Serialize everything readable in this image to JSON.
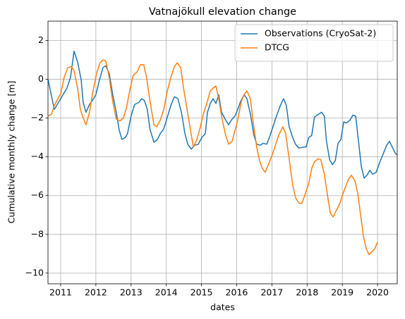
{
  "chart_data": {
    "type": "line",
    "title": "Vatnajökull elevation change",
    "xlabel": "dates",
    "ylabel": "Cumulative monthly change [m]",
    "xlim": [
      2010.64,
      2020.56
    ],
    "ylim": [
      -10.55,
      3.0
    ],
    "xticks": [
      2011,
      2012,
      2013,
      2014,
      2015,
      2016,
      2017,
      2018,
      2019,
      2020
    ],
    "yticks": [
      {
        "value": -10,
        "label": "−10"
      },
      {
        "value": -8,
        "label": "−8"
      },
      {
        "value": -6,
        "label": "−6"
      },
      {
        "value": -4,
        "label": "−4"
      },
      {
        "value": -2,
        "label": "−2"
      },
      0,
      2
    ],
    "grid": true,
    "legend": "upper right",
    "series": [
      {
        "name": "Observations (CryoSat-2)",
        "color": "#1f77b4",
        "x": [
          2010.64,
          2010.82,
          2011.0,
          2011.18,
          2011.28,
          2011.38,
          2011.48,
          2011.58,
          2011.64,
          2011.72,
          2011.82,
          2011.9,
          2012.0,
          2012.1,
          2012.2,
          2012.28,
          2012.38,
          2012.48,
          2012.58,
          2012.66,
          2012.74,
          2012.84,
          2012.9,
          2013.0,
          2013.1,
          2013.22,
          2013.3,
          2013.38,
          2013.46,
          2013.54,
          2013.65,
          2013.75,
          2013.83,
          2013.93,
          2014.03,
          2014.13,
          2014.23,
          2014.33,
          2014.43,
          2014.53,
          2014.61,
          2014.71,
          2014.81,
          2014.91,
          2015.01,
          2015.11,
          2015.17,
          2015.25,
          2015.33,
          2015.41,
          2015.49,
          2015.57,
          2015.67,
          2015.77,
          2015.85,
          2015.95,
          2016.03,
          2016.11,
          2016.21,
          2016.29,
          2016.39,
          2016.49,
          2016.57,
          2016.67,
          2016.75,
          2016.85,
          2016.93,
          2017.03,
          2017.13,
          2017.23,
          2017.33,
          2017.41,
          2017.49,
          2017.59,
          2017.67,
          2017.77,
          2017.89,
          2017.97,
          2018.05,
          2018.13,
          2018.21,
          2018.33,
          2018.41,
          2018.49,
          2018.55,
          2018.64,
          2018.72,
          2018.8,
          2018.88,
          2018.96,
          2019.04,
          2019.12,
          2019.22,
          2019.3,
          2019.38,
          2019.46,
          2019.54,
          2019.62,
          2019.7,
          2019.78,
          2019.86,
          2019.96,
          2020.06,
          2020.16,
          2020.26,
          2020.34,
          2020.42,
          2020.5,
          2020.56
        ],
        "values": [
          0,
          -1.55,
          -1.0,
          -0.45,
          0.1,
          1.45,
          0.9,
          0,
          -1.2,
          -1.7,
          -1.3,
          -1.1,
          -0.8,
          -0.05,
          0.6,
          0.7,
          0.3,
          -0.8,
          -1.7,
          -2.6,
          -3.1,
          -3.0,
          -2.8,
          -1.9,
          -1.3,
          -1.2,
          -1.0,
          -1.1,
          -1.55,
          -2.6,
          -3.25,
          -3.1,
          -2.8,
          -2.55,
          -1.95,
          -1.35,
          -0.9,
          -1.0,
          -1.7,
          -2.8,
          -3.35,
          -3.6,
          -3.4,
          -3.35,
          -3.0,
          -2.8,
          -1.7,
          -1.25,
          -1.0,
          -1.25,
          -0.8,
          -1.7,
          -2.05,
          -2.35,
          -2.1,
          -1.9,
          -1.55,
          -1.15,
          -0.8,
          -1.0,
          -1.8,
          -2.9,
          -3.35,
          -3.4,
          -3.3,
          -3.35,
          -3.0,
          -2.45,
          -1.9,
          -1.4,
          -1.0,
          -1.35,
          -2.45,
          -3.0,
          -3.35,
          -3.55,
          -3.5,
          -3.5,
          -3.0,
          -2.9,
          -1.95,
          -1.8,
          -1.7,
          -1.9,
          -3.2,
          -4.15,
          -4.4,
          -4.2,
          -3.3,
          -3.1,
          -2.2,
          -2.25,
          -2.1,
          -1.85,
          -1.9,
          -3.2,
          -4.5,
          -5.1,
          -4.95,
          -4.7,
          -4.9,
          -4.8,
          -4.3,
          -3.85,
          -3.4,
          -3.2,
          -3.5,
          -3.8,
          -3.9
        ]
      },
      {
        "name": "DTCG",
        "color": "#ff7f0e",
        "x": [
          2010.64,
          2010.74,
          2010.82,
          2010.92,
          2011.0,
          2011.1,
          2011.2,
          2011.3,
          2011.38,
          2011.48,
          2011.56,
          2011.64,
          2011.72,
          2011.82,
          2011.92,
          2012.02,
          2012.12,
          2012.2,
          2012.28,
          2012.38,
          2012.48,
          2012.58,
          2012.68,
          2012.78,
          2012.86,
          2012.96,
          2013.06,
          2013.18,
          2013.26,
          2013.36,
          2013.44,
          2013.54,
          2013.65,
          2013.73,
          2013.83,
          2013.93,
          2014.03,
          2014.13,
          2014.23,
          2014.31,
          2014.41,
          2014.49,
          2014.59,
          2014.69,
          2014.77,
          2014.87,
          2014.97,
          2015.05,
          2015.15,
          2015.25,
          2015.33,
          2015.41,
          2015.49,
          2015.59,
          2015.69,
          2015.77,
          2015.87,
          2015.95,
          2016.03,
          2016.13,
          2016.21,
          2016.29,
          2016.39,
          2016.47,
          2016.57,
          2016.65,
          2016.73,
          2016.81,
          2016.91,
          2017.01,
          2017.11,
          2017.19,
          2017.31,
          2017.39,
          2017.49,
          2017.59,
          2017.67,
          2017.77,
          2017.85,
          2017.95,
          2018.05,
          2018.13,
          2018.21,
          2018.31,
          2018.39,
          2018.49,
          2018.58,
          2018.66,
          2018.74,
          2018.82,
          2018.92,
          2019.0,
          2019.1,
          2019.18,
          2019.26,
          2019.36,
          2019.44,
          2019.52,
          2019.6,
          2019.68,
          2019.76,
          2019.84,
          2019.92,
          2020.0
        ],
        "values": [
          -1.9,
          -1.8,
          -1.35,
          -1.0,
          -0.75,
          0.1,
          0.6,
          0.65,
          0.45,
          -0.45,
          -1.55,
          -2.0,
          -2.35,
          -1.7,
          -0.6,
          0.3,
          0.85,
          1.0,
          0.95,
          0.1,
          -1.15,
          -2.05,
          -2.15,
          -2.0,
          -1.55,
          -0.6,
          0.2,
          0.4,
          0.75,
          0.75,
          0.1,
          -1.15,
          -2.35,
          -2.45,
          -2.1,
          -1.55,
          -0.6,
          0.1,
          0.65,
          0.85,
          0.6,
          -0.45,
          -1.55,
          -2.65,
          -3.5,
          -3.1,
          -2.45,
          -1.8,
          -1.25,
          -0.6,
          -0.45,
          -0.35,
          -1.0,
          -2.1,
          -2.9,
          -3.35,
          -3.2,
          -2.65,
          -2.1,
          -1.15,
          -0.8,
          -0.6,
          -1.0,
          -2.25,
          -3.5,
          -4.2,
          -4.6,
          -4.8,
          -4.35,
          -3.9,
          -3.35,
          -2.9,
          -2.45,
          -2.8,
          -4.1,
          -5.45,
          -6.1,
          -6.4,
          -6.4,
          -5.9,
          -5.35,
          -4.6,
          -4.25,
          -4.1,
          -4.15,
          -4.9,
          -6.0,
          -6.9,
          -7.1,
          -6.8,
          -6.45,
          -6.0,
          -5.5,
          -5.15,
          -4.95,
          -5.25,
          -5.9,
          -7.0,
          -8.1,
          -8.75,
          -9.05,
          -8.9,
          -8.75,
          -8.4
        ]
      }
    ]
  }
}
